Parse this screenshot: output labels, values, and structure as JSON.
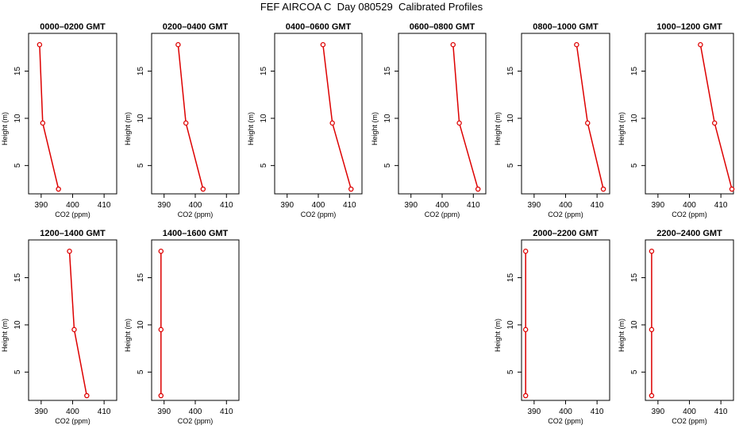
{
  "title": "FEF AIRCOA C  Day 080529  Calibrated Profiles",
  "chart_data": [
    {
      "type": "line",
      "title": "0000–0200 GMT",
      "xlabel": "CO2 (ppm)",
      "ylabel": "Height (m)",
      "xlim": [
        386,
        414
      ],
      "ylim": [
        2,
        19
      ],
      "xticks": [
        390,
        400,
        410
      ],
      "yticks": [
        5,
        10,
        15
      ],
      "x": [
        389.5,
        390.5,
        395.5
      ],
      "y": [
        17.8,
        9.5,
        2.5
      ],
      "color": "#dd0000",
      "marker": "open-circle"
    },
    {
      "type": "line",
      "title": "0200–0400 GMT",
      "xlabel": "CO2 (ppm)",
      "ylabel": "Height (m)",
      "xlim": [
        386,
        414
      ],
      "ylim": [
        2,
        19
      ],
      "xticks": [
        390,
        400,
        410
      ],
      "yticks": [
        5,
        10,
        15
      ],
      "x": [
        394.5,
        397,
        402.5
      ],
      "y": [
        17.8,
        9.5,
        2.5
      ],
      "color": "#dd0000",
      "marker": "open-circle"
    },
    {
      "type": "line",
      "title": "0400–0600 GMT",
      "xlabel": "CO2 (ppm)",
      "ylabel": "Height (m)",
      "xlim": [
        386,
        414
      ],
      "ylim": [
        2,
        19
      ],
      "xticks": [
        390,
        400,
        410
      ],
      "yticks": [
        5,
        10,
        15
      ],
      "x": [
        401.5,
        404.5,
        410.5
      ],
      "y": [
        17.8,
        9.5,
        2.5
      ],
      "color": "#dd0000",
      "marker": "open-circle"
    },
    {
      "type": "line",
      "title": "0600–0800 GMT",
      "xlabel": "CO2 (ppm)",
      "ylabel": "Height (m)",
      "xlim": [
        386,
        414
      ],
      "ylim": [
        2,
        19
      ],
      "xticks": [
        390,
        400,
        410
      ],
      "yticks": [
        5,
        10,
        15
      ],
      "x": [
        403.5,
        405.5,
        411.5
      ],
      "y": [
        17.8,
        9.5,
        2.5
      ],
      "color": "#dd0000",
      "marker": "open-circle"
    },
    {
      "type": "line",
      "title": "0800–1000 GMT",
      "xlabel": "CO2 (ppm)",
      "ylabel": "Height (m)",
      "xlim": [
        386,
        414
      ],
      "ylim": [
        2,
        19
      ],
      "xticks": [
        390,
        400,
        410
      ],
      "yticks": [
        5,
        10,
        15
      ],
      "x": [
        403.5,
        407,
        412
      ],
      "y": [
        17.8,
        9.5,
        2.5
      ],
      "color": "#dd0000",
      "marker": "open-circle"
    },
    {
      "type": "line",
      "title": "1000–1200 GMT",
      "xlabel": "CO2 (ppm)",
      "ylabel": "Height (m)",
      "xlim": [
        386,
        414
      ],
      "ylim": [
        2,
        19
      ],
      "xticks": [
        390,
        400,
        410
      ],
      "yticks": [
        5,
        10,
        15
      ],
      "x": [
        403.5,
        408,
        413.5
      ],
      "y": [
        17.8,
        9.5,
        2.5
      ],
      "color": "#dd0000",
      "marker": "open-circle"
    },
    {
      "type": "line",
      "title": "1200–1400 GMT",
      "xlabel": "CO2 (ppm)",
      "ylabel": "Height (m)",
      "xlim": [
        386,
        414
      ],
      "ylim": [
        2,
        19
      ],
      "xticks": [
        390,
        400,
        410
      ],
      "yticks": [
        5,
        10,
        15
      ],
      "x": [
        399,
        400.5,
        404.5
      ],
      "y": [
        17.8,
        9.5,
        2.5
      ],
      "color": "#dd0000",
      "marker": "open-circle"
    },
    {
      "type": "line",
      "title": "1400–1600 GMT",
      "xlabel": "CO2 (ppm)",
      "ylabel": "Height (m)",
      "xlim": [
        386,
        414
      ],
      "ylim": [
        2,
        19
      ],
      "xticks": [
        390,
        400,
        410
      ],
      "yticks": [
        5,
        10,
        15
      ],
      "x": [
        389,
        389,
        389
      ],
      "y": [
        17.8,
        9.5,
        2.5
      ],
      "color": "#dd0000",
      "marker": "open-circle"
    },
    {
      "type": "line",
      "title": "2000–2200 GMT",
      "xlabel": "CO2 (ppm)",
      "ylabel": "Height (m)",
      "xlim": [
        386,
        414
      ],
      "ylim": [
        2,
        19
      ],
      "xticks": [
        390,
        400,
        410
      ],
      "yticks": [
        5,
        10,
        15
      ],
      "x": [
        387.3,
        387.3,
        387.3
      ],
      "y": [
        17.8,
        9.5,
        2.5
      ],
      "color": "#dd0000",
      "marker": "open-circle"
    },
    {
      "type": "line",
      "title": "2200–2400 GMT",
      "xlabel": "CO2 (ppm)",
      "ylabel": "Height (m)",
      "xlim": [
        386,
        414
      ],
      "ylim": [
        2,
        19
      ],
      "xticks": [
        390,
        400,
        410
      ],
      "yticks": [
        5,
        10,
        15
      ],
      "x": [
        388,
        388,
        388
      ],
      "y": [
        17.8,
        9.5,
        2.5
      ],
      "color": "#dd0000",
      "marker": "open-circle"
    }
  ]
}
